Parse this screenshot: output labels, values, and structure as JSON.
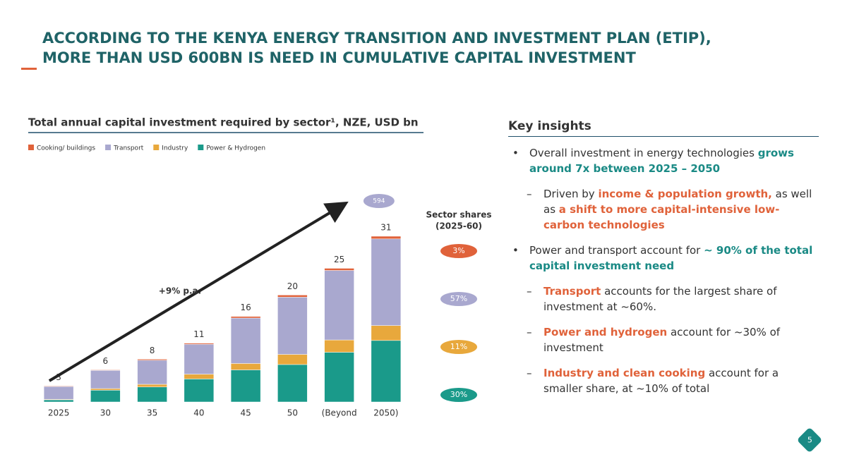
{
  "slide": {
    "title_lines": [
      "ACCORDING TO THE KENYA ENERGY TRANSITION AND INVESTMENT PLAN (ETIP),",
      "MORE THAN USD 600BN IS NEED IN CUMULATIVE CAPITAL INVESTMENT"
    ],
    "page_number": "5"
  },
  "chart_data": {
    "type": "stacked-bar",
    "title": "Total annual capital investment required by sector¹, NZE, USD bn",
    "categories": [
      "2025",
      "30",
      "35",
      "40",
      "45",
      "50",
      "(Beyond",
      "2050)"
    ],
    "series": [
      {
        "name": "Cooking/ buildings",
        "color": "#e0623a",
        "values": [
          0.1,
          0.1,
          0.2,
          0.2,
          0.3,
          0.4,
          0.4,
          0.5
        ],
        "share": 3,
        "share_label": "3%"
      },
      {
        "name": "Transport",
        "color": "#a9a8cf",
        "values": [
          2.4,
          3.4,
          4.5,
          5.6,
          8.5,
          10.7,
          13.0,
          16.2
        ],
        "share": 57,
        "share_label": "57%"
      },
      {
        "name": "Industry",
        "color": "#e8a83c",
        "values": [
          0.1,
          0.3,
          0.5,
          0.9,
          1.2,
          1.9,
          2.3,
          2.8
        ],
        "share": 11,
        "share_label": "11%"
      },
      {
        "name": "Power & Hydrogen",
        "color": "#1a9a8a",
        "values": [
          0.4,
          2.2,
          2.8,
          4.3,
          6.0,
          7.0,
          9.3,
          11.5
        ],
        "share": 30,
        "share_label": "30%"
      }
    ],
    "totals": [
      3,
      6,
      8,
      11,
      16,
      20,
      25,
      31
    ],
    "cumulative_label": 594,
    "growth_annotation": "+9% p.a.",
    "shares_title": [
      "Sector shares",
      "(2025-60)"
    ]
  },
  "insights": {
    "title": "Key insights",
    "items": [
      {
        "parts": [
          {
            "text": "Overall investment in energy technologies "
          },
          {
            "text": "grows around 7x between 2025 – 2050",
            "em": "teal"
          }
        ],
        "subs": [
          {
            "parts": [
              {
                "text": "Driven by "
              },
              {
                "text": "income & population growth,",
                "em": "orange"
              },
              {
                "text": " as well as "
              },
              {
                "text": "a shift to more capital-intensive low-carbon technologies",
                "em": "orange"
              }
            ]
          }
        ]
      },
      {
        "parts": [
          {
            "text": "Power and transport account for "
          },
          {
            "text": "~ 90% of the total capital investment need",
            "em": "teal"
          }
        ],
        "subs": [
          {
            "parts": [
              {
                "text": "Transport",
                "em": "orange"
              },
              {
                "text": " accounts for the largest share of investment at ~60%."
              }
            ]
          },
          {
            "parts": [
              {
                "text": "Power and hydrogen",
                "em": "orange"
              },
              {
                "text": " account for ~30% of investment"
              }
            ]
          },
          {
            "parts": [
              {
                "text": "Industry and clean cooking",
                "em": "orange"
              },
              {
                "text": " account for a smaller share, at ~10% of total"
              }
            ]
          }
        ]
      }
    ]
  }
}
